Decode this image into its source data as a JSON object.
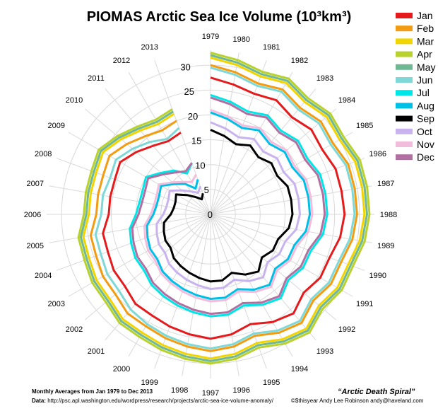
{
  "chart_data": {
    "type": "line",
    "title": "PIOMAS Arctic Sea Ice Volume (10³km³)",
    "polar": true,
    "radial_range": [
      0,
      33
    ],
    "radial_ticks": [
      0,
      5,
      10,
      15,
      20,
      25,
      30
    ],
    "legend_position": "right",
    "years": [
      "1979",
      "1980",
      "1981",
      "1982",
      "1983",
      "1984",
      "1985",
      "1986",
      "1987",
      "1988",
      "1989",
      "1990",
      "1991",
      "1992",
      "1993",
      "1994",
      "1995",
      "1996",
      "1997",
      "1998",
      "1999",
      "2000",
      "2001",
      "2002",
      "2003",
      "2004",
      "2005",
      "2006",
      "2007",
      "2008",
      "2009",
      "2010",
      "2011",
      "2012",
      "2013"
    ],
    "series": [
      {
        "name": "Jan",
        "color": "#e41a1c",
        "values": [
          27.5,
          26.5,
          25.8,
          26.5,
          25.5,
          26.5,
          26.0,
          26.8,
          26.8,
          27.0,
          26.5,
          25.5,
          25.5,
          24.5,
          26.0,
          25.0,
          23.5,
          24.5,
          25.0,
          24.5,
          24.0,
          23.5,
          23.5,
          22.5,
          22.5,
          22.0,
          22.0,
          20.5,
          20.5,
          20.5,
          21.0,
          19.5,
          18.0,
          17.0,
          17.5
        ]
      },
      {
        "name": "Feb",
        "color": "#f39c12",
        "values": [
          30.0,
          29.0,
          28.0,
          29.0,
          28.0,
          29.0,
          28.5,
          29.5,
          29.5,
          29.5,
          29.0,
          28.0,
          28.0,
          27.0,
          28.5,
          27.5,
          26.0,
          27.0,
          27.5,
          27.0,
          26.5,
          26.0,
          26.0,
          25.0,
          25.0,
          24.5,
          24.5,
          23.0,
          23.0,
          23.0,
          23.5,
          22.0,
          20.5,
          19.5,
          20.0
        ]
      },
      {
        "name": "Mar",
        "color": "#f1d400",
        "values": [
          31.5,
          30.5,
          29.5,
          30.5,
          29.5,
          30.5,
          30.0,
          31.0,
          31.0,
          31.0,
          30.5,
          29.5,
          29.5,
          28.5,
          30.0,
          29.0,
          27.5,
          28.5,
          29.0,
          28.5,
          28.0,
          27.5,
          27.5,
          26.5,
          26.5,
          26.0,
          26.0,
          24.5,
          24.5,
          24.5,
          25.0,
          23.5,
          22.0,
          21.0,
          21.5
        ]
      },
      {
        "name": "Apr",
        "color": "#b8d12b",
        "values": [
          32.5,
          31.5,
          30.5,
          31.5,
          30.5,
          31.5,
          31.0,
          32.0,
          32.0,
          32.0,
          31.5,
          30.5,
          30.5,
          29.5,
          31.0,
          30.0,
          28.5,
          29.5,
          30.0,
          29.5,
          29.0,
          28.5,
          28.5,
          27.5,
          27.5,
          27.0,
          27.0,
          25.5,
          25.5,
          25.5,
          26.0,
          24.5,
          23.0,
          22.0,
          22.5
        ]
      },
      {
        "name": "May",
        "color": "#6fb894",
        "values": [
          32.0,
          31.0,
          30.0,
          31.0,
          30.0,
          31.0,
          30.5,
          31.5,
          31.5,
          31.5,
          31.0,
          30.0,
          30.0,
          29.0,
          30.5,
          29.5,
          28.0,
          29.0,
          29.5,
          29.0,
          28.5,
          28.0,
          28.0,
          27.0,
          27.0,
          26.5,
          26.5,
          25.0,
          25.0,
          25.0,
          25.5,
          24.0,
          22.5,
          21.5,
          22.0
        ]
      },
      {
        "name": "Jun",
        "color": "#7fd8d8",
        "values": [
          29.5,
          28.5,
          27.5,
          28.5,
          27.5,
          28.5,
          28.0,
          29.0,
          29.0,
          29.0,
          28.5,
          27.5,
          27.5,
          26.5,
          28.0,
          27.0,
          25.5,
          26.5,
          27.0,
          26.5,
          26.0,
          25.5,
          25.0,
          24.0,
          24.0,
          23.5,
          23.5,
          22.0,
          22.0,
          21.5,
          22.0,
          20.5,
          19.0,
          17.5,
          18.5
        ]
      },
      {
        "name": "Jul",
        "color": "#00e5e5",
        "values": [
          24.0,
          23.0,
          22.0,
          23.0,
          22.0,
          23.0,
          22.5,
          23.5,
          23.5,
          23.5,
          23.0,
          21.5,
          21.5,
          20.5,
          22.0,
          21.0,
          19.5,
          20.5,
          20.5,
          20.0,
          19.5,
          19.0,
          18.5,
          17.5,
          17.5,
          17.0,
          16.5,
          15.0,
          14.5,
          14.5,
          15.0,
          13.0,
          11.5,
          9.5,
          11.0
        ]
      },
      {
        "name": "Aug",
        "color": "#00bfe6",
        "values": [
          20.5,
          19.5,
          18.5,
          19.5,
          18.5,
          19.5,
          19.0,
          20.0,
          20.0,
          20.0,
          19.5,
          18.0,
          18.0,
          17.0,
          18.5,
          17.5,
          16.0,
          17.0,
          17.0,
          16.5,
          16.0,
          15.5,
          15.0,
          14.0,
          14.0,
          13.5,
          13.0,
          11.5,
          11.0,
          11.0,
          11.5,
          9.5,
          8.0,
          6.0,
          7.5
        ]
      },
      {
        "name": "Sep",
        "color": "#000000",
        "values": [
          17.0,
          16.0,
          15.0,
          16.0,
          15.0,
          16.0,
          15.5,
          16.5,
          16.5,
          16.5,
          16.0,
          14.5,
          14.5,
          13.5,
          15.0,
          14.0,
          12.5,
          13.5,
          13.5,
          13.0,
          12.5,
          12.0,
          11.5,
          10.5,
          10.5,
          10.0,
          9.5,
          8.0,
          7.5,
          7.5,
          8.0,
          6.0,
          4.5,
          3.5,
          4.5
        ]
      },
      {
        "name": "Oct",
        "color": "#c9b3ee",
        "values": [
          18.5,
          17.5,
          16.5,
          17.5,
          16.5,
          17.5,
          17.0,
          18.0,
          18.0,
          18.0,
          17.5,
          16.0,
          16.0,
          15.0,
          16.5,
          15.5,
          14.0,
          15.0,
          15.0,
          14.5,
          14.0,
          13.5,
          13.0,
          12.0,
          12.0,
          11.5,
          11.0,
          9.5,
          9.0,
          9.0,
          9.5,
          7.5,
          6.0,
          5.0,
          6.0
        ]
      },
      {
        "name": "Nov",
        "color": "#f2bcdc",
        "values": [
          21.0,
          20.0,
          19.0,
          20.0,
          19.0,
          20.0,
          19.5,
          20.5,
          20.5,
          20.5,
          20.0,
          18.5,
          18.5,
          17.5,
          19.0,
          18.0,
          16.5,
          17.5,
          17.5,
          17.0,
          16.5,
          16.0,
          15.5,
          14.5,
          14.5,
          14.0,
          13.5,
          12.0,
          11.5,
          11.5,
          12.0,
          10.0,
          8.5,
          7.5,
          8.5
        ]
      },
      {
        "name": "Dec",
        "color": "#b26fa1",
        "values": [
          23.5,
          22.5,
          21.5,
          22.5,
          21.5,
          22.5,
          22.0,
          23.0,
          23.0,
          23.0,
          22.5,
          21.0,
          21.0,
          20.0,
          21.5,
          20.5,
          19.0,
          20.0,
          20.0,
          19.5,
          19.0,
          18.5,
          18.0,
          17.0,
          17.0,
          16.5,
          16.0,
          14.5,
          14.0,
          14.0,
          14.5,
          12.5,
          11.0,
          10.0,
          11.0
        ]
      }
    ]
  },
  "footer": {
    "line1": "Monthly Averages from Jan 1979 to Dec 2013",
    "data_label": "Data:",
    "data_url": "http://psc.apl.washington.edu/wordpress/research/projects/arctic-sea-ice-volume-anomaly/",
    "name": "“Arctic Death Spiral”",
    "credit": "©$thisyear Andy Lee Robinson andy@haveland.com"
  }
}
